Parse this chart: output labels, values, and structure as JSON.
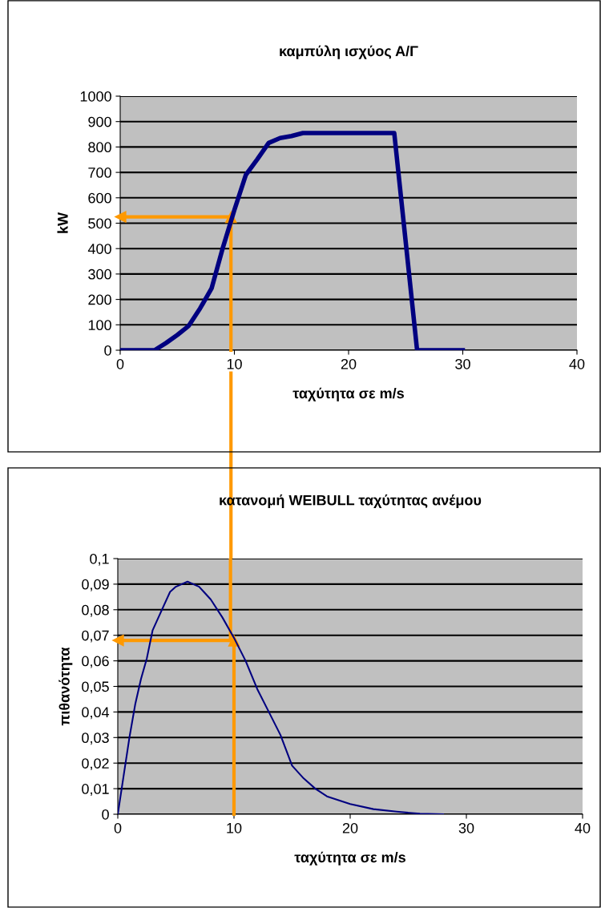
{
  "chart_data": [
    {
      "type": "line",
      "title": "καμπύλη ισχύος Α/Γ",
      "xlabel": "ταχύτητα σε m/s",
      "ylabel": "kW",
      "x": [
        0,
        1,
        2,
        3,
        4,
        5,
        6,
        7,
        8,
        9,
        10,
        11,
        12,
        13,
        14,
        15,
        16,
        18,
        20,
        22,
        24,
        26,
        27,
        28,
        29,
        30
      ],
      "series": [
        {
          "color": "#000080",
          "values": [
            0,
            0,
            0,
            0,
            28,
            60,
            96,
            165,
            243,
            405,
            552,
            690,
            751,
            816,
            835,
            843,
            855,
            855,
            855,
            855,
            855,
            0,
            0,
            0,
            0,
            0
          ]
        }
      ],
      "xlim": [
        0,
        40
      ],
      "xticks": [
        0,
        10,
        20,
        30,
        40
      ],
      "ylim": [
        0,
        1000
      ],
      "yticks": [
        0,
        100,
        200,
        300,
        400,
        500,
        600,
        700,
        800,
        900,
        1000
      ],
      "grid": "y",
      "legend": false,
      "marker": "none",
      "line_style": "solid",
      "ref_lines": [
        {
          "axis": "x",
          "value": 9.7,
          "color": "#ff9900"
        },
        {
          "axis": "y",
          "value": 525,
          "color": "#ff9900"
        }
      ]
    },
    {
      "type": "line",
      "title": "κατανομή WEIBULL ταχύτητας ανέμου",
      "xlabel": "ταχύτητα σε m/s",
      "ylabel": "πιθανότητα",
      "x": [
        0,
        0.5,
        1,
        1.5,
        2,
        2.5,
        3,
        3.5,
        4,
        4.5,
        5,
        6,
        7,
        8,
        9,
        10,
        11,
        12,
        13,
        14,
        15,
        16,
        17,
        18,
        20,
        22,
        24,
        26,
        28
      ],
      "series": [
        {
          "color": "#000080",
          "values": [
            0,
            0.015,
            0.03,
            0.043,
            0.053,
            0.061,
            0.072,
            0.077,
            0.082,
            0.087,
            0.089,
            0.091,
            0.089,
            0.084,
            0.077,
            0.069,
            0.06,
            0.049,
            0.04,
            0.031,
            0.019,
            0.014,
            0.01,
            0.007,
            0.004,
            0.002,
            0.001,
            0.0002,
            0
          ]
        }
      ],
      "xlim": [
        0,
        40
      ],
      "xticks": [
        0,
        10,
        20,
        30,
        40
      ],
      "ylim": [
        0,
        0.1
      ],
      "yticks": [
        0,
        {
          "value": 0.01,
          "label": "0,01"
        },
        {
          "value": 0.02,
          "label": "0,02"
        },
        {
          "value": 0.03,
          "label": "0,03"
        },
        {
          "value": 0.04,
          "label": "0,04"
        },
        {
          "value": 0.05,
          "label": "0,05"
        },
        {
          "value": 0.06,
          "label": "0,06"
        },
        {
          "value": 0.07,
          "label": "0,07"
        },
        {
          "value": 0.08,
          "label": "0,08"
        },
        {
          "value": 0.09,
          "label": "0,09"
        },
        {
          "value": 0.1,
          "label": "0,1"
        }
      ],
      "grid": "y",
      "legend": false,
      "marker": "none",
      "line_style": "solid",
      "ref_lines": [
        {
          "axis": "x",
          "value": 10,
          "color": "#ff9900"
        },
        {
          "axis": "y",
          "value": 0.068,
          "color": "#ff9900"
        },
        {
          "axis": "x",
          "value": 9.7,
          "color": "#ff9900"
        }
      ]
    }
  ]
}
